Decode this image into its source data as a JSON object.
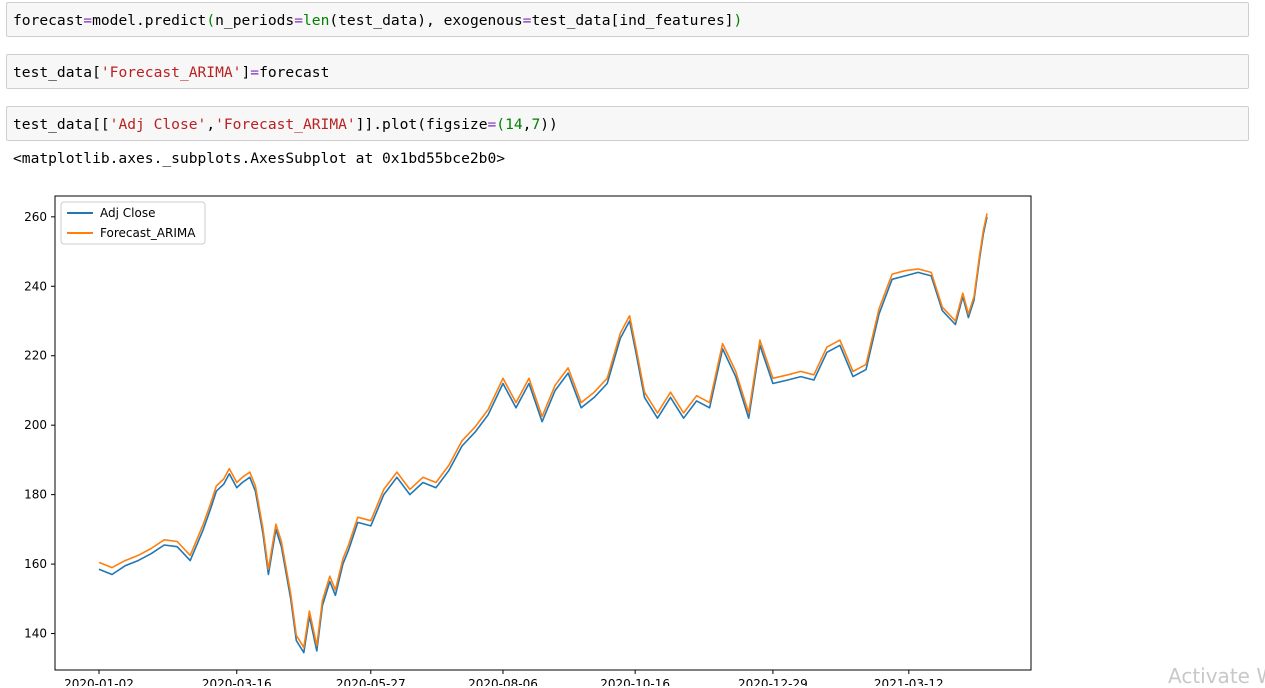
{
  "cells": {
    "cell1": {
      "tokens": [
        {
          "t": "forecast",
          "c": "p"
        },
        {
          "t": "=",
          "c": "k"
        },
        {
          "t": "model.predict",
          "c": "p"
        },
        {
          "t": "(",
          "c": "b"
        },
        {
          "t": "n_periods",
          "c": "p"
        },
        {
          "t": "=",
          "c": "k"
        },
        {
          "t": "len",
          "c": "b"
        },
        {
          "t": "(test_data), exogenous",
          "c": "p"
        },
        {
          "t": "=",
          "c": "k"
        },
        {
          "t": "test_data[ind_features]",
          "c": "p"
        },
        {
          "t": ")",
          "c": "b"
        }
      ]
    },
    "cell2": {
      "tokens": [
        {
          "t": "test_data[",
          "c": "p"
        },
        {
          "t": "'Forecast_ARIMA'",
          "c": "s"
        },
        {
          "t": "]",
          "c": "p"
        },
        {
          "t": "=",
          "c": "k"
        },
        {
          "t": "forecast",
          "c": "p"
        }
      ]
    },
    "cell3": {
      "tokens": [
        {
          "t": "test_data[[",
          "c": "p"
        },
        {
          "t": "'Adj Close'",
          "c": "s"
        },
        {
          "t": ",",
          "c": "p"
        },
        {
          "t": "'Forecast_ARIMA'",
          "c": "s"
        },
        {
          "t": "]].plot(figsize",
          "c": "p"
        },
        {
          "t": "=",
          "c": "k"
        },
        {
          "t": "(",
          "c": "b"
        },
        {
          "t": "14",
          "c": "n"
        },
        {
          "t": ",",
          "c": "p"
        },
        {
          "t": "7",
          "c": "n"
        },
        {
          "t": "))",
          "c": "p"
        }
      ]
    },
    "output_text": "<matplotlib.axes._subplots.AxesSubplot at 0x1bd55bce2b0>"
  },
  "watermark": "Activate W",
  "chart_data": {
    "type": "line",
    "title": "",
    "xlabel": "",
    "ylabel": "",
    "ylim": [
      129.5,
      266.0
    ],
    "yticks": [
      140,
      160,
      180,
      200,
      220,
      240,
      260
    ],
    "xticks": [
      "2020-01-02",
      "2020-03-16",
      "2020-05-27",
      "2020-08-06",
      "2020-10-16",
      "2020-12-29",
      "2021-03-12"
    ],
    "x_start": "2020-01-02",
    "x_end": "2021-04-23",
    "grid": false,
    "legend": "upper left",
    "series": [
      {
        "name": "Adj Close",
        "color": "#1f77b4",
        "points": [
          [
            "2020-01-02",
            158.5
          ],
          [
            "2020-01-09",
            157.0
          ],
          [
            "2020-01-16",
            159.5
          ],
          [
            "2020-01-23",
            161.0
          ],
          [
            "2020-01-30",
            163.0
          ],
          [
            "2020-02-06",
            165.5
          ],
          [
            "2020-02-13",
            165.0
          ],
          [
            "2020-02-20",
            161.0
          ],
          [
            "2020-02-27",
            170.0
          ],
          [
            "2020-03-02",
            176.0
          ],
          [
            "2020-03-05",
            181.0
          ],
          [
            "2020-03-09",
            183.0
          ],
          [
            "2020-03-12",
            186.0
          ],
          [
            "2020-03-16",
            182.0
          ],
          [
            "2020-03-19",
            183.5
          ],
          [
            "2020-03-23",
            185.0
          ],
          [
            "2020-03-26",
            181.0
          ],
          [
            "2020-03-30",
            169.0
          ],
          [
            "2020-04-02",
            157.0
          ],
          [
            "2020-04-06",
            170.0
          ],
          [
            "2020-04-09",
            165.0
          ],
          [
            "2020-04-14",
            150.0
          ],
          [
            "2020-04-17",
            138.0
          ],
          [
            "2020-04-21",
            134.5
          ],
          [
            "2020-04-24",
            145.0
          ],
          [
            "2020-04-28",
            135.0
          ],
          [
            "2020-05-01",
            148.0
          ],
          [
            "2020-05-05",
            155.0
          ],
          [
            "2020-05-08",
            151.0
          ],
          [
            "2020-05-12",
            160.0
          ],
          [
            "2020-05-15",
            164.0
          ],
          [
            "2020-05-20",
            172.0
          ],
          [
            "2020-05-27",
            171.0
          ],
          [
            "2020-06-03",
            180.0
          ],
          [
            "2020-06-10",
            185.0
          ],
          [
            "2020-06-17",
            180.0
          ],
          [
            "2020-06-24",
            183.5
          ],
          [
            "2020-07-01",
            182.0
          ],
          [
            "2020-07-08",
            187.0
          ],
          [
            "2020-07-15",
            194.0
          ],
          [
            "2020-07-22",
            198.0
          ],
          [
            "2020-07-29",
            203.0
          ],
          [
            "2020-08-06",
            212.0
          ],
          [
            "2020-08-13",
            205.0
          ],
          [
            "2020-08-20",
            212.0
          ],
          [
            "2020-08-27",
            201.0
          ],
          [
            "2020-09-03",
            210.0
          ],
          [
            "2020-09-10",
            215.0
          ],
          [
            "2020-09-17",
            205.0
          ],
          [
            "2020-09-24",
            208.0
          ],
          [
            "2020-10-01",
            212.0
          ],
          [
            "2020-10-08",
            225.0
          ],
          [
            "2020-10-13",
            230.0
          ],
          [
            "2020-10-16",
            222.0
          ],
          [
            "2020-10-21",
            208.0
          ],
          [
            "2020-10-28",
            202.0
          ],
          [
            "2020-11-04",
            208.0
          ],
          [
            "2020-11-11",
            202.0
          ],
          [
            "2020-11-18",
            207.0
          ],
          [
            "2020-11-25",
            205.0
          ],
          [
            "2020-12-02",
            222.0
          ],
          [
            "2020-12-09",
            214.0
          ],
          [
            "2020-12-16",
            202.0
          ],
          [
            "2020-12-22",
            223.0
          ],
          [
            "2020-12-29",
            212.0
          ],
          [
            "2021-01-06",
            213.0
          ],
          [
            "2021-01-13",
            214.0
          ],
          [
            "2021-01-20",
            213.0
          ],
          [
            "2021-01-27",
            221.0
          ],
          [
            "2021-02-03",
            223.0
          ],
          [
            "2021-02-10",
            214.0
          ],
          [
            "2021-02-17",
            216.0
          ],
          [
            "2021-02-24",
            232.0
          ],
          [
            "2021-03-03",
            242.0
          ],
          [
            "2021-03-10",
            243.0
          ],
          [
            "2021-03-17",
            244.0
          ],
          [
            "2021-03-24",
            243.0
          ],
          [
            "2021-03-30",
            233.0
          ],
          [
            "2021-04-06",
            229.0
          ],
          [
            "2021-04-10",
            237.0
          ],
          [
            "2021-04-13",
            231.0
          ],
          [
            "2021-04-16",
            236.0
          ],
          [
            "2021-04-19",
            248.0
          ],
          [
            "2021-04-21",
            255.0
          ],
          [
            "2021-04-23",
            260.0
          ]
        ]
      },
      {
        "name": "Forecast_ARIMA",
        "color": "#ff7f0e",
        "points": [
          [
            "2020-01-02",
            160.5
          ],
          [
            "2020-01-09",
            159.0
          ],
          [
            "2020-01-16",
            161.0
          ],
          [
            "2020-01-23",
            162.5
          ],
          [
            "2020-01-30",
            164.5
          ],
          [
            "2020-02-06",
            167.0
          ],
          [
            "2020-02-13",
            166.5
          ],
          [
            "2020-02-20",
            162.5
          ],
          [
            "2020-02-27",
            171.5
          ],
          [
            "2020-03-02",
            177.5
          ],
          [
            "2020-03-05",
            182.5
          ],
          [
            "2020-03-09",
            184.5
          ],
          [
            "2020-03-12",
            187.5
          ],
          [
            "2020-03-16",
            183.5
          ],
          [
            "2020-03-19",
            185.0
          ],
          [
            "2020-03-23",
            186.5
          ],
          [
            "2020-03-26",
            182.5
          ],
          [
            "2020-03-30",
            170.5
          ],
          [
            "2020-04-02",
            158.5
          ],
          [
            "2020-04-06",
            171.5
          ],
          [
            "2020-04-09",
            166.5
          ],
          [
            "2020-04-14",
            151.5
          ],
          [
            "2020-04-17",
            139.5
          ],
          [
            "2020-04-21",
            136.0
          ],
          [
            "2020-04-24",
            146.5
          ],
          [
            "2020-04-28",
            136.5
          ],
          [
            "2020-05-01",
            149.5
          ],
          [
            "2020-05-05",
            156.5
          ],
          [
            "2020-05-08",
            152.5
          ],
          [
            "2020-05-12",
            161.5
          ],
          [
            "2020-05-15",
            165.5
          ],
          [
            "2020-05-20",
            173.5
          ],
          [
            "2020-05-27",
            172.5
          ],
          [
            "2020-06-03",
            181.5
          ],
          [
            "2020-06-10",
            186.5
          ],
          [
            "2020-06-17",
            181.5
          ],
          [
            "2020-06-24",
            185.0
          ],
          [
            "2020-07-01",
            183.5
          ],
          [
            "2020-07-08",
            188.5
          ],
          [
            "2020-07-15",
            195.5
          ],
          [
            "2020-07-22",
            199.5
          ],
          [
            "2020-07-29",
            204.5
          ],
          [
            "2020-08-06",
            213.5
          ],
          [
            "2020-08-13",
            206.5
          ],
          [
            "2020-08-20",
            213.5
          ],
          [
            "2020-08-27",
            202.5
          ],
          [
            "2020-09-03",
            211.5
          ],
          [
            "2020-09-10",
            216.5
          ],
          [
            "2020-09-17",
            206.5
          ],
          [
            "2020-09-24",
            209.5
          ],
          [
            "2020-10-01",
            213.5
          ],
          [
            "2020-10-08",
            226.5
          ],
          [
            "2020-10-13",
            231.5
          ],
          [
            "2020-10-16",
            223.5
          ],
          [
            "2020-10-21",
            209.5
          ],
          [
            "2020-10-28",
            203.5
          ],
          [
            "2020-11-04",
            209.5
          ],
          [
            "2020-11-11",
            203.5
          ],
          [
            "2020-11-18",
            208.5
          ],
          [
            "2020-11-25",
            206.5
          ],
          [
            "2020-12-02",
            223.5
          ],
          [
            "2020-12-09",
            215.5
          ],
          [
            "2020-12-16",
            203.5
          ],
          [
            "2020-12-22",
            224.5
          ],
          [
            "2020-12-29",
            213.5
          ],
          [
            "2021-01-06",
            214.5
          ],
          [
            "2021-01-13",
            215.5
          ],
          [
            "2021-01-20",
            214.5
          ],
          [
            "2021-01-27",
            222.5
          ],
          [
            "2021-02-03",
            224.5
          ],
          [
            "2021-02-10",
            215.5
          ],
          [
            "2021-02-17",
            217.5
          ],
          [
            "2021-02-24",
            233.5
          ],
          [
            "2021-03-03",
            243.5
          ],
          [
            "2021-03-10",
            244.5
          ],
          [
            "2021-03-17",
            245.0
          ],
          [
            "2021-03-24",
            244.0
          ],
          [
            "2021-03-30",
            234.0
          ],
          [
            "2021-04-06",
            230.0
          ],
          [
            "2021-04-10",
            238.0
          ],
          [
            "2021-04-13",
            232.0
          ],
          [
            "2021-04-16",
            237.0
          ],
          [
            "2021-04-19",
            249.0
          ],
          [
            "2021-04-21",
            256.0
          ],
          [
            "2021-04-23",
            261.0
          ]
        ]
      }
    ]
  }
}
